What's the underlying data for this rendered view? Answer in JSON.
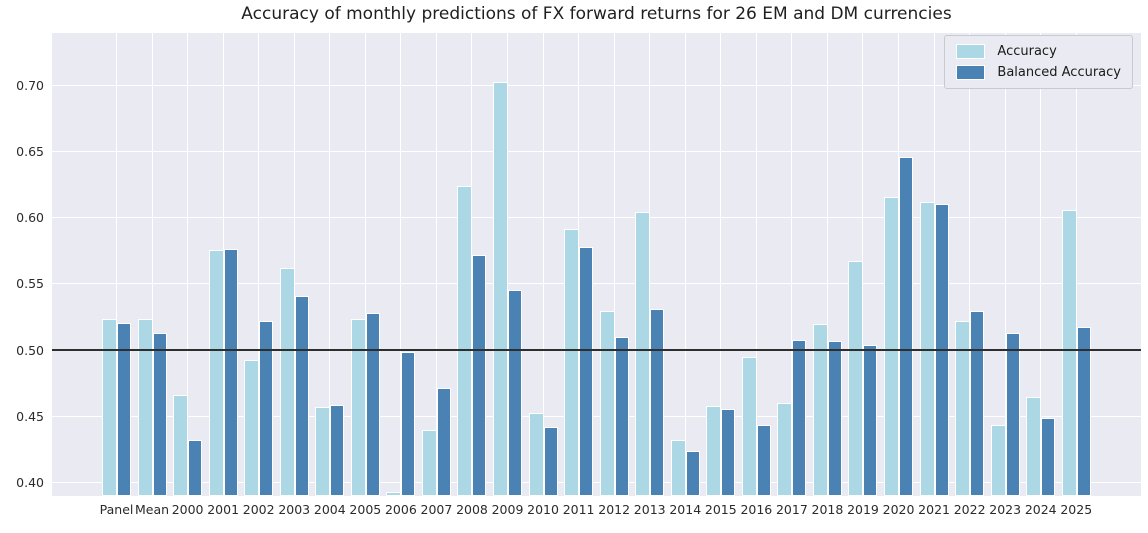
{
  "colors": {
    "figure_bg": "#ffffff",
    "plot_bg": "#eaeaf2",
    "grid": "#ffffff",
    "accuracy": "#abd8e4",
    "balanced_accuracy": "#4a82b4",
    "reference_line": "#2e2e2e",
    "tick_text": "#2b2b2b",
    "title_text": "#1f1f1f",
    "legend_bg": "#eaeaf2",
    "legend_border": "#c9c9d0"
  },
  "legend": {
    "items": [
      "Accuracy",
      "Balanced Accuracy"
    ]
  },
  "chart_data": {
    "type": "bar",
    "title": "Accuracy of monthly predictions of FX forward returns for 26 EM and DM currencies",
    "xlabel": "",
    "ylabel": "",
    "categories": [
      "Panel",
      "Mean",
      "2000",
      "2001",
      "2002",
      "2003",
      "2004",
      "2005",
      "2006",
      "2007",
      "2008",
      "2009",
      "2010",
      "2011",
      "2012",
      "2013",
      "2014",
      "2015",
      "2016",
      "2017",
      "2018",
      "2019",
      "2020",
      "2021",
      "2022",
      "2023",
      "2024",
      "2025"
    ],
    "series": [
      {
        "name": "Accuracy",
        "color": "#abd8e4",
        "values": [
          0.524,
          0.524,
          0.466,
          0.576,
          0.493,
          0.562,
          0.457,
          0.524,
          0.393,
          0.44,
          0.624,
          0.703,
          0.453,
          0.592,
          0.53,
          0.605,
          0.432,
          0.458,
          0.495,
          0.46,
          0.52,
          0.568,
          0.616,
          0.612,
          0.522,
          0.444,
          0.465,
          0.606
        ]
      },
      {
        "name": "Balanced Accuracy",
        "color": "#4a82b4",
        "values": [
          0.521,
          0.513,
          0.432,
          0.577,
          0.522,
          0.541,
          0.459,
          0.528,
          0.499,
          0.472,
          0.572,
          0.546,
          0.442,
          0.578,
          0.51,
          0.531,
          0.424,
          0.456,
          0.444,
          0.508,
          0.507,
          0.504,
          0.646,
          0.611,
          0.53,
          0.513,
          0.449,
          0.518
        ]
      }
    ],
    "yticks": [
      0.4,
      0.45,
      0.5,
      0.55,
      0.6,
      0.65,
      0.7
    ],
    "ytick_labels": [
      "0.40",
      "0.45",
      "0.50",
      "0.55",
      "0.60",
      "0.65",
      "0.70"
    ],
    "ylim": [
      0.39,
      0.74
    ],
    "reference_line_y": 0.5,
    "grid": true,
    "legend_position": "upper right"
  }
}
